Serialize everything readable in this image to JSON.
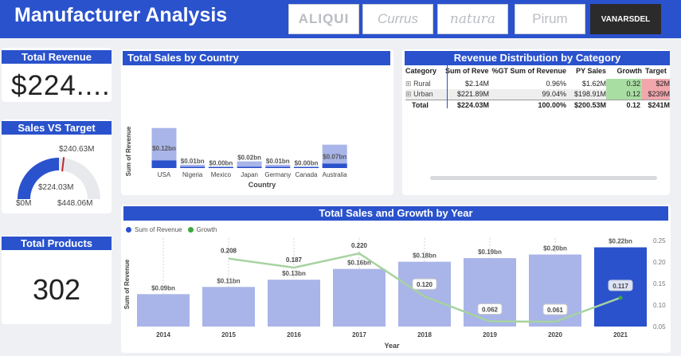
{
  "header": {
    "title": "Manufacturer Analysis",
    "brands": [
      {
        "label": "ALIQUI",
        "selected": false
      },
      {
        "label": "Currus",
        "selected": false
      },
      {
        "label": "natura",
        "selected": false
      },
      {
        "label": "Pirum",
        "selected": false
      },
      {
        "label": "VANARSDEL",
        "selected": true
      }
    ]
  },
  "kpis": {
    "total_revenue": {
      "label": "Total Revenue",
      "value": "$224...."
    },
    "sales_vs_target": {
      "label": "Sales VS Target",
      "target_label": "$240.63M",
      "actual_label": "$224.03M",
      "min_label": "$0M",
      "max_label": "$448.06M",
      "actual": 224.03,
      "target": 240.63,
      "max": 448.06
    },
    "total_products": {
      "label": "Total Products",
      "value": "302"
    }
  },
  "sales_by_country": {
    "title": "Total Sales by Country",
    "chart_data": {
      "type": "bar",
      "categories": [
        "USA",
        "Nigeria",
        "Mexico",
        "Japan",
        "Germany",
        "Canada",
        "Australia"
      ],
      "values": [
        0.12,
        0.01,
        0.0,
        0.02,
        0.01,
        0.0,
        0.07
      ],
      "data_labels": [
        "$0.12bn",
        "$0.01bn",
        "$0.00bn",
        "$0.02bn",
        "$0.01bn",
        "$0.00bn",
        "$0.07bn"
      ],
      "xlabel": "Country",
      "ylabel": "Sum of Revenue"
    }
  },
  "revenue_distribution": {
    "title": "Revenue Distribution by Category",
    "columns": [
      "Category",
      "Sum of Revenue",
      "%GT Sum of Revenue",
      "PY Sales",
      "Growth",
      "Target"
    ],
    "rows": [
      {
        "expand": "⊞",
        "category": "Rural",
        "revenue": "$2.14M",
        "pct": "0.96%",
        "py": "$1.62M",
        "growth": "0.32",
        "target": "$2M"
      },
      {
        "expand": "⊞",
        "category": "Urban",
        "revenue": "$221.89M",
        "pct": "99.04%",
        "py": "$198.91M",
        "growth": "0.12",
        "target": "$239M"
      }
    ],
    "total": {
      "category": "Total",
      "revenue": "$224.03M",
      "pct": "100.00%",
      "py": "$200.53M",
      "growth": "0.12",
      "target": "$241M"
    },
    "colors": {
      "growth_bg": "#a9dea3",
      "target_bg": "#f2a7ad"
    }
  },
  "sales_growth_by_year": {
    "title": "Total Sales and Growth by Year",
    "legend": [
      {
        "name": "Sum of Revenue",
        "color": "#2a52cc"
      },
      {
        "name": "Growth",
        "color": "#3da83d"
      }
    ],
    "chart_data": {
      "type": "bar",
      "categories": [
        "2014",
        "2015",
        "2016",
        "2017",
        "2018",
        "2019",
        "2020",
        "2021"
      ],
      "series": [
        {
          "name": "Sum of Revenue",
          "values": [
            0.09,
            0.11,
            0.13,
            0.16,
            0.18,
            0.19,
            0.2,
            0.22
          ],
          "labels": [
            "$0.09bn",
            "$0.11bn",
            "$0.13bn",
            "$0.16bn",
            "$0.18bn",
            "$0.19bn",
            "$0.20bn",
            "$0.22bn"
          ]
        },
        {
          "name": "Growth",
          "values": [
            null,
            0.208,
            0.187,
            0.22,
            0.12,
            0.062,
            0.061,
            0.117
          ],
          "labels": [
            "",
            "0.208",
            "0.187",
            "0.220",
            "0.120",
            "0.062",
            "0.061",
            "0.117"
          ]
        }
      ],
      "xlabel": "Year",
      "ylabel": "Sum of Revenue",
      "y2_ticks": [
        "0.25",
        "0.20",
        "0.15",
        "0.10",
        "0.05"
      ],
      "y2lim": [
        0.05,
        0.25
      ],
      "ylim": [
        0,
        0.25
      ]
    }
  }
}
